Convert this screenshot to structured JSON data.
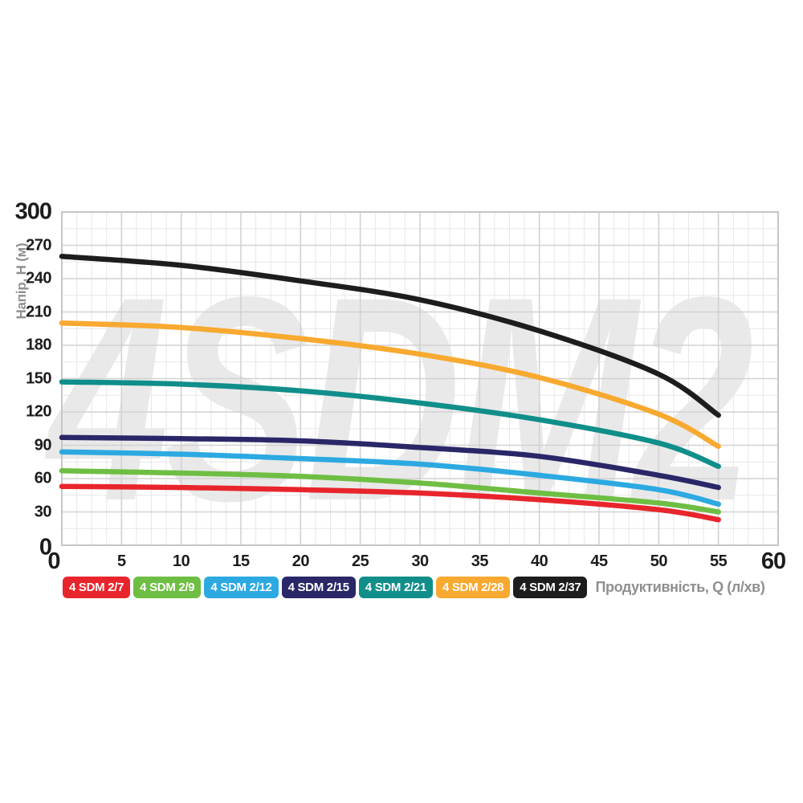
{
  "page": {
    "background": "#ffffff"
  },
  "watermark": "4SDM2",
  "y_axis": {
    "title": "Напір, H (м)",
    "ticks": [
      300,
      270,
      240,
      210,
      180,
      150,
      120,
      90,
      60,
      30,
      0
    ]
  },
  "x_axis": {
    "title": "Продуктивність, Q (л/хв)",
    "ticks": [
      0,
      5,
      10,
      15,
      20,
      25,
      30,
      35,
      40,
      45,
      50,
      55,
      60
    ]
  },
  "colors": {
    "tick_text": "#1c1c1c",
    "axis_title_gray": "#8f8f8f",
    "grid_minor": "#e7e7e7",
    "grid_major": "#d2d2d2",
    "grid_border": "#c6c6c6",
    "watermark": "#e9e9e9"
  },
  "chart_data": {
    "type": "line",
    "title": "",
    "xlabel": "Продуктивність, Q (л/хв)",
    "ylabel": "Напір, H (м)",
    "xlim": [
      0,
      60
    ],
    "ylim": [
      0,
      300
    ],
    "x_ticks": [
      0,
      5,
      10,
      15,
      20,
      25,
      30,
      35,
      40,
      45,
      50,
      55,
      60
    ],
    "y_ticks": [
      0,
      30,
      60,
      90,
      120,
      150,
      180,
      210,
      240,
      270,
      300
    ],
    "grid": true,
    "legend_position": "bottom",
    "watermark": "4SDM2",
    "x": [
      0,
      10,
      20,
      30,
      40,
      50,
      55
    ],
    "series": [
      {
        "name": "4 SDM 2/7",
        "color": "#e8252c",
        "values": [
          53,
          52,
          50,
          47,
          41,
          32,
          23
        ]
      },
      {
        "name": "4 SDM 2/9",
        "color": "#6fbe44",
        "values": [
          67,
          65,
          62,
          56,
          47,
          38,
          30
        ]
      },
      {
        "name": "4 SDM 2/12",
        "color": "#2ca9e1",
        "values": [
          84,
          82,
          78,
          73,
          63,
          50,
          37
        ]
      },
      {
        "name": "4 SDM 2/15",
        "color": "#2a2768",
        "values": [
          97,
          96,
          94,
          88,
          80,
          63,
          52
        ]
      },
      {
        "name": "4 SDM 2/21",
        "color": "#108e8a",
        "values": [
          147,
          145,
          139,
          128,
          113,
          92,
          71
        ]
      },
      {
        "name": "4 SDM 2/28",
        "color": "#f8a930",
        "values": [
          200,
          196,
          186,
          172,
          151,
          118,
          89
        ]
      },
      {
        "name": "4 SDM 2/37",
        "color": "#1d1d1d",
        "values": [
          260,
          252,
          238,
          221,
          193,
          154,
          117
        ]
      }
    ]
  }
}
